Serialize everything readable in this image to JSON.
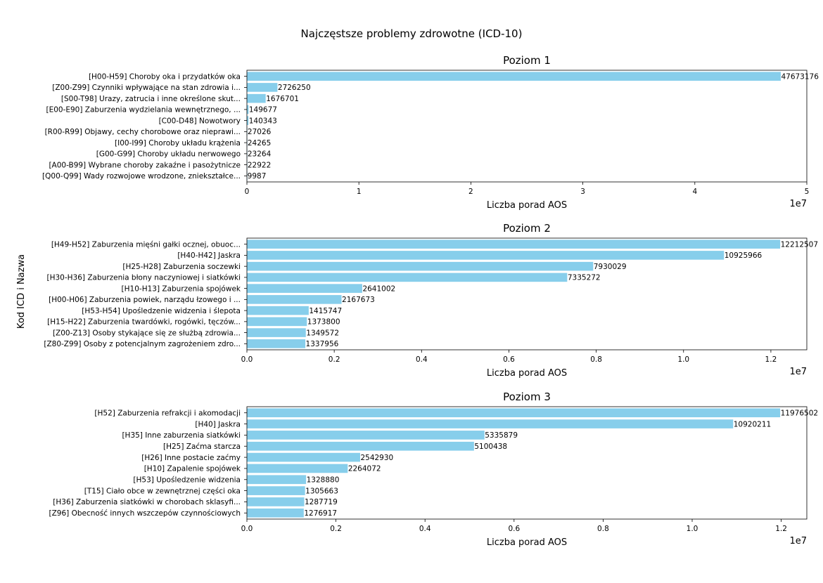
{
  "figure": {
    "suptitle": "Najczęstsze problemy zdrowotne (ICD-10)",
    "ylabel": "Kod ICD i Nazwa",
    "bar_color": "#87CEEB"
  },
  "chart_data": [
    {
      "type": "bar",
      "orientation": "horizontal",
      "title": "Poziom 1",
      "xlabel": "Liczba porad AOS",
      "offset_text": "1e7",
      "xlim": [
        0,
        50000000
      ],
      "xticks": [
        0,
        10000000,
        20000000,
        30000000,
        40000000,
        50000000
      ],
      "xtick_labels": [
        "0",
        "1",
        "2",
        "3",
        "4",
        "5"
      ],
      "categories": [
        "[H00-H59] Choroby oka i przydatków oka",
        "[Z00-Z99] Czynniki wpływające na stan zdrowia i...",
        "[S00-T98] Urazy, zatrucia i inne określone skut...",
        "[E00-E90] Zaburzenia wydzielania wewnętrznego, ...",
        "[C00-D48] Nowotwory",
        "[R00-R99] Objawy, cechy chorobowe oraz nieprawi...",
        "[I00-I99] Choroby układu krążenia",
        "[G00-G99] Choroby układu nerwowego",
        "[A00-B99] Wybrane choroby zakaźne i pasożytnicze",
        "[Q00-Q99] Wady rozwojowe wrodzone, zniekształce..."
      ],
      "values": [
        47673176,
        2726250,
        1676701,
        149677,
        140343,
        27026,
        24265,
        23264,
        22922,
        9987
      ],
      "value_labels": [
        "47673176",
        "2726250",
        "1676701",
        "149677",
        "140343",
        "27026",
        "24265",
        "23264",
        "22922",
        "9987"
      ]
    },
    {
      "type": "bar",
      "orientation": "horizontal",
      "title": "Poziom 2",
      "xlabel": "Liczba porad AOS",
      "offset_text": "1e7",
      "xlim": [
        0,
        12823000
      ],
      "xticks": [
        0,
        2000000,
        4000000,
        6000000,
        8000000,
        10000000,
        12000000
      ],
      "xtick_labels": [
        "0.0",
        "0.2",
        "0.4",
        "0.6",
        "0.8",
        "1.0",
        "1.2"
      ],
      "categories": [
        "[H49-H52] Zaburzenia mięśni gałki ocznej, obuoc...",
        "[H40-H42] Jaskra",
        "[H25-H28] Zaburzenia soczewki",
        "[H30-H36] Zaburzenia błony naczyniowej i siatkówki",
        "[H10-H13] Zaburzenia spojówek",
        "[H00-H06] Zaburzenia powiek, narządu łzowego i ...",
        "[H53-H54] Upośledzenie widzenia i ślepota",
        "[H15-H22] Zaburzenia twardówki, rogówki, tęczów...",
        "[Z00-Z13] Osoby stykające się ze służbą zdrowia...",
        "[Z80-Z99] Osoby z potencjalnym zagrożeniem zdro..."
      ],
      "values": [
        12212507,
        10925966,
        7930029,
        7335272,
        2641002,
        2167673,
        1415747,
        1373800,
        1349572,
        1337956
      ],
      "value_labels": [
        "12212507",
        "10925966",
        "7930029",
        "7335272",
        "2641002",
        "2167673",
        "1415747",
        "1373800",
        "1349572",
        "1337956"
      ]
    },
    {
      "type": "bar",
      "orientation": "horizontal",
      "title": "Poziom 3",
      "xlabel": "Liczba porad AOS",
      "offset_text": "1e7",
      "xlim": [
        0,
        12575000
      ],
      "xticks": [
        0,
        2000000,
        4000000,
        6000000,
        8000000,
        10000000,
        12000000
      ],
      "xtick_labels": [
        "0.0",
        "0.2",
        "0.4",
        "0.6",
        "0.8",
        "1.0",
        "1.2"
      ],
      "categories": [
        "[H52] Zaburzenia refrakcji i akomodacji",
        "[H40] Jaskra",
        "[H35] Inne zaburzenia siatkówki",
        "[H25] Zaćma starcza",
        "[H26] Inne postacie zaćmy",
        "[H10] Zapalenie spojówek",
        "[H53] Upośledzenie widzenia",
        "[T15] Ciało obce w zewnętrznej części oka",
        "[H36] Zaburzenia siatkówki w chorobach sklasyfi...",
        "[Z96] Obecność innych wszczepów czynnościowych"
      ],
      "values": [
        11976502,
        10920211,
        5335879,
        5100438,
        2542930,
        2264072,
        1328880,
        1305663,
        1287719,
        1276917
      ],
      "value_labels": [
        "11976502",
        "10920211",
        "5335879",
        "5100438",
        "2542930",
        "2264072",
        "1328880",
        "1305663",
        "1287719",
        "1276917"
      ]
    }
  ]
}
